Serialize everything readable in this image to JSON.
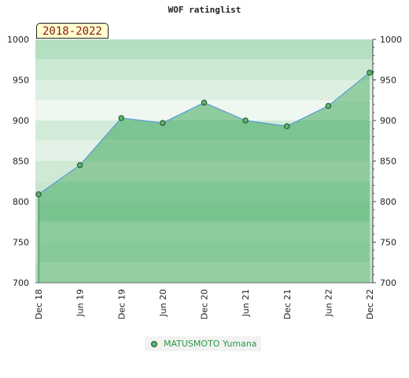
{
  "chart_data": {
    "type": "area",
    "title": "WOF ratinglist",
    "period_badge": "2018-2022",
    "x_categories": [
      "Dec 18",
      "Jun 19",
      "Dec 19",
      "Jun 20",
      "Dec 20",
      "Jun 21",
      "Dec 21",
      "Jun 22",
      "Dec 22"
    ],
    "y_ticks": [
      "700",
      "750",
      "800",
      "850",
      "900",
      "950",
      "1000"
    ],
    "ylim": [
      700,
      1000
    ],
    "series": [
      {
        "name": "MATUSMOTO Yumana",
        "values": [
          809,
          845,
          903,
          897,
          922,
          900,
          893,
          918,
          959
        ]
      }
    ],
    "grid": true,
    "legend": "bottom-center",
    "colors": {
      "line": "#5b9bd5",
      "area": "#7cc494",
      "marker": "#5cb46d",
      "legend_text": "#2e9a48"
    }
  }
}
